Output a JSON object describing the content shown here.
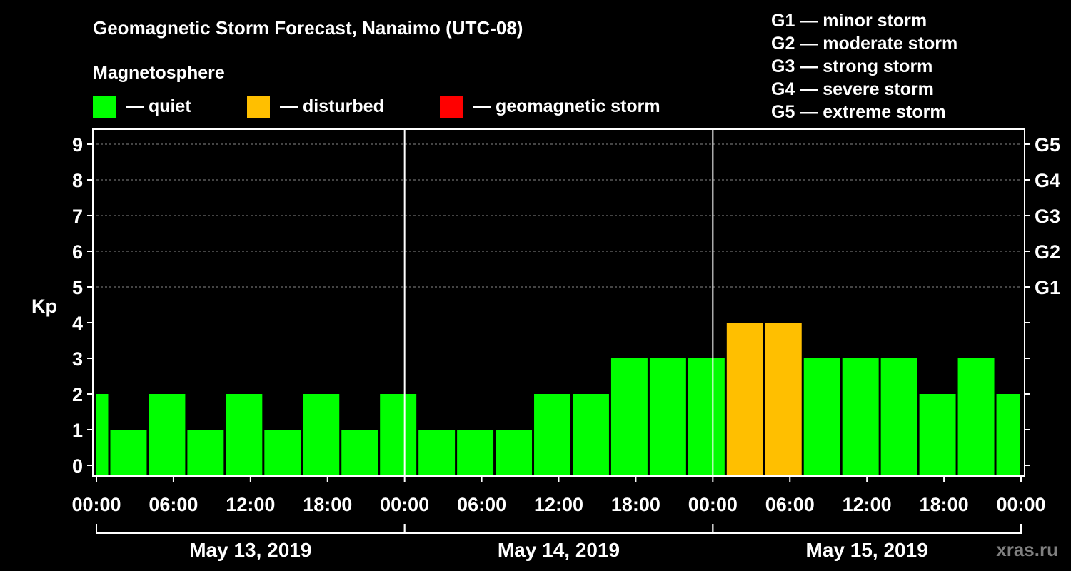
{
  "chart_data": {
    "type": "bar",
    "title": "Geomagnetic Storm Forecast, Nanaimo (UTC-08)",
    "ylabel": "Kp",
    "ylim": [
      0,
      9
    ],
    "yticks": [
      "0",
      "1",
      "2",
      "3",
      "4",
      "5",
      "6",
      "7",
      "8",
      "9"
    ],
    "g_scale": [
      {
        "kp": 5,
        "label": "G1"
      },
      {
        "kp": 6,
        "label": "G2"
      },
      {
        "kp": 7,
        "label": "G3"
      },
      {
        "kp": 8,
        "label": "G4"
      },
      {
        "kp": 9,
        "label": "G5"
      }
    ],
    "x_range_hours": [
      0,
      72
    ],
    "x_tick_labels": [
      "00:00",
      "06:00",
      "12:00",
      "18:00",
      "00:00",
      "06:00",
      "12:00",
      "18:00",
      "00:00",
      "06:00",
      "12:00",
      "18:00",
      "00:00"
    ],
    "x_tick_hours": [
      0,
      6,
      12,
      18,
      24,
      30,
      36,
      42,
      48,
      54,
      60,
      66,
      72
    ],
    "days": [
      {
        "label": "May 13, 2019",
        "start_hour": 0,
        "end_hour": 24
      },
      {
        "label": "May 14, 2019",
        "start_hour": 24,
        "end_hour": 48
      },
      {
        "label": "May 15, 2019",
        "start_hour": 48,
        "end_hour": 72
      }
    ],
    "bars": [
      {
        "start": 0,
        "end": 1,
        "kp": 2,
        "status": "quiet"
      },
      {
        "start": 1,
        "end": 4,
        "kp": 1,
        "status": "quiet"
      },
      {
        "start": 4,
        "end": 7,
        "kp": 2,
        "status": "quiet"
      },
      {
        "start": 7,
        "end": 10,
        "kp": 1,
        "status": "quiet"
      },
      {
        "start": 10,
        "end": 13,
        "kp": 2,
        "status": "quiet"
      },
      {
        "start": 13,
        "end": 16,
        "kp": 1,
        "status": "quiet"
      },
      {
        "start": 16,
        "end": 19,
        "kp": 2,
        "status": "quiet"
      },
      {
        "start": 19,
        "end": 22,
        "kp": 1,
        "status": "quiet"
      },
      {
        "start": 22,
        "end": 25,
        "kp": 2,
        "status": "quiet"
      },
      {
        "start": 25,
        "end": 28,
        "kp": 1,
        "status": "quiet"
      },
      {
        "start": 28,
        "end": 31,
        "kp": 1,
        "status": "quiet"
      },
      {
        "start": 31,
        "end": 34,
        "kp": 1,
        "status": "quiet"
      },
      {
        "start": 34,
        "end": 37,
        "kp": 2,
        "status": "quiet"
      },
      {
        "start": 37,
        "end": 40,
        "kp": 2,
        "status": "quiet"
      },
      {
        "start": 40,
        "end": 43,
        "kp": 3,
        "status": "quiet"
      },
      {
        "start": 43,
        "end": 46,
        "kp": 3,
        "status": "quiet"
      },
      {
        "start": 46,
        "end": 49,
        "kp": 3,
        "status": "quiet"
      },
      {
        "start": 49,
        "end": 52,
        "kp": 4,
        "status": "disturbed"
      },
      {
        "start": 52,
        "end": 55,
        "kp": 4,
        "status": "disturbed"
      },
      {
        "start": 55,
        "end": 58,
        "kp": 3,
        "status": "quiet"
      },
      {
        "start": 58,
        "end": 61,
        "kp": 3,
        "status": "quiet"
      },
      {
        "start": 61,
        "end": 64,
        "kp": 3,
        "status": "quiet"
      },
      {
        "start": 64,
        "end": 67,
        "kp": 2,
        "status": "quiet"
      },
      {
        "start": 67,
        "end": 70,
        "kp": 3,
        "status": "quiet"
      },
      {
        "start": 70,
        "end": 72,
        "kp": 2,
        "status": "quiet"
      }
    ]
  },
  "legend": {
    "title": "Magnetosphere",
    "items": [
      {
        "key": "quiet",
        "label": "— quiet",
        "color": "#00ff00"
      },
      {
        "key": "disturbed",
        "label": "— disturbed",
        "color": "#ffbf00"
      },
      {
        "key": "storm",
        "label": "— geomagnetic storm",
        "color": "#ff0000"
      }
    ]
  },
  "storm_scale": [
    "G1 — minor storm",
    "G2 — moderate storm",
    "G3 — strong storm",
    "G4 — severe storm",
    "G5 — extreme storm"
  ],
  "watermark": "xras.ru",
  "colors": {
    "background": "#000000",
    "axis": "#ffffff",
    "grid": "#888888",
    "watermark": "#7f7f7f"
  }
}
